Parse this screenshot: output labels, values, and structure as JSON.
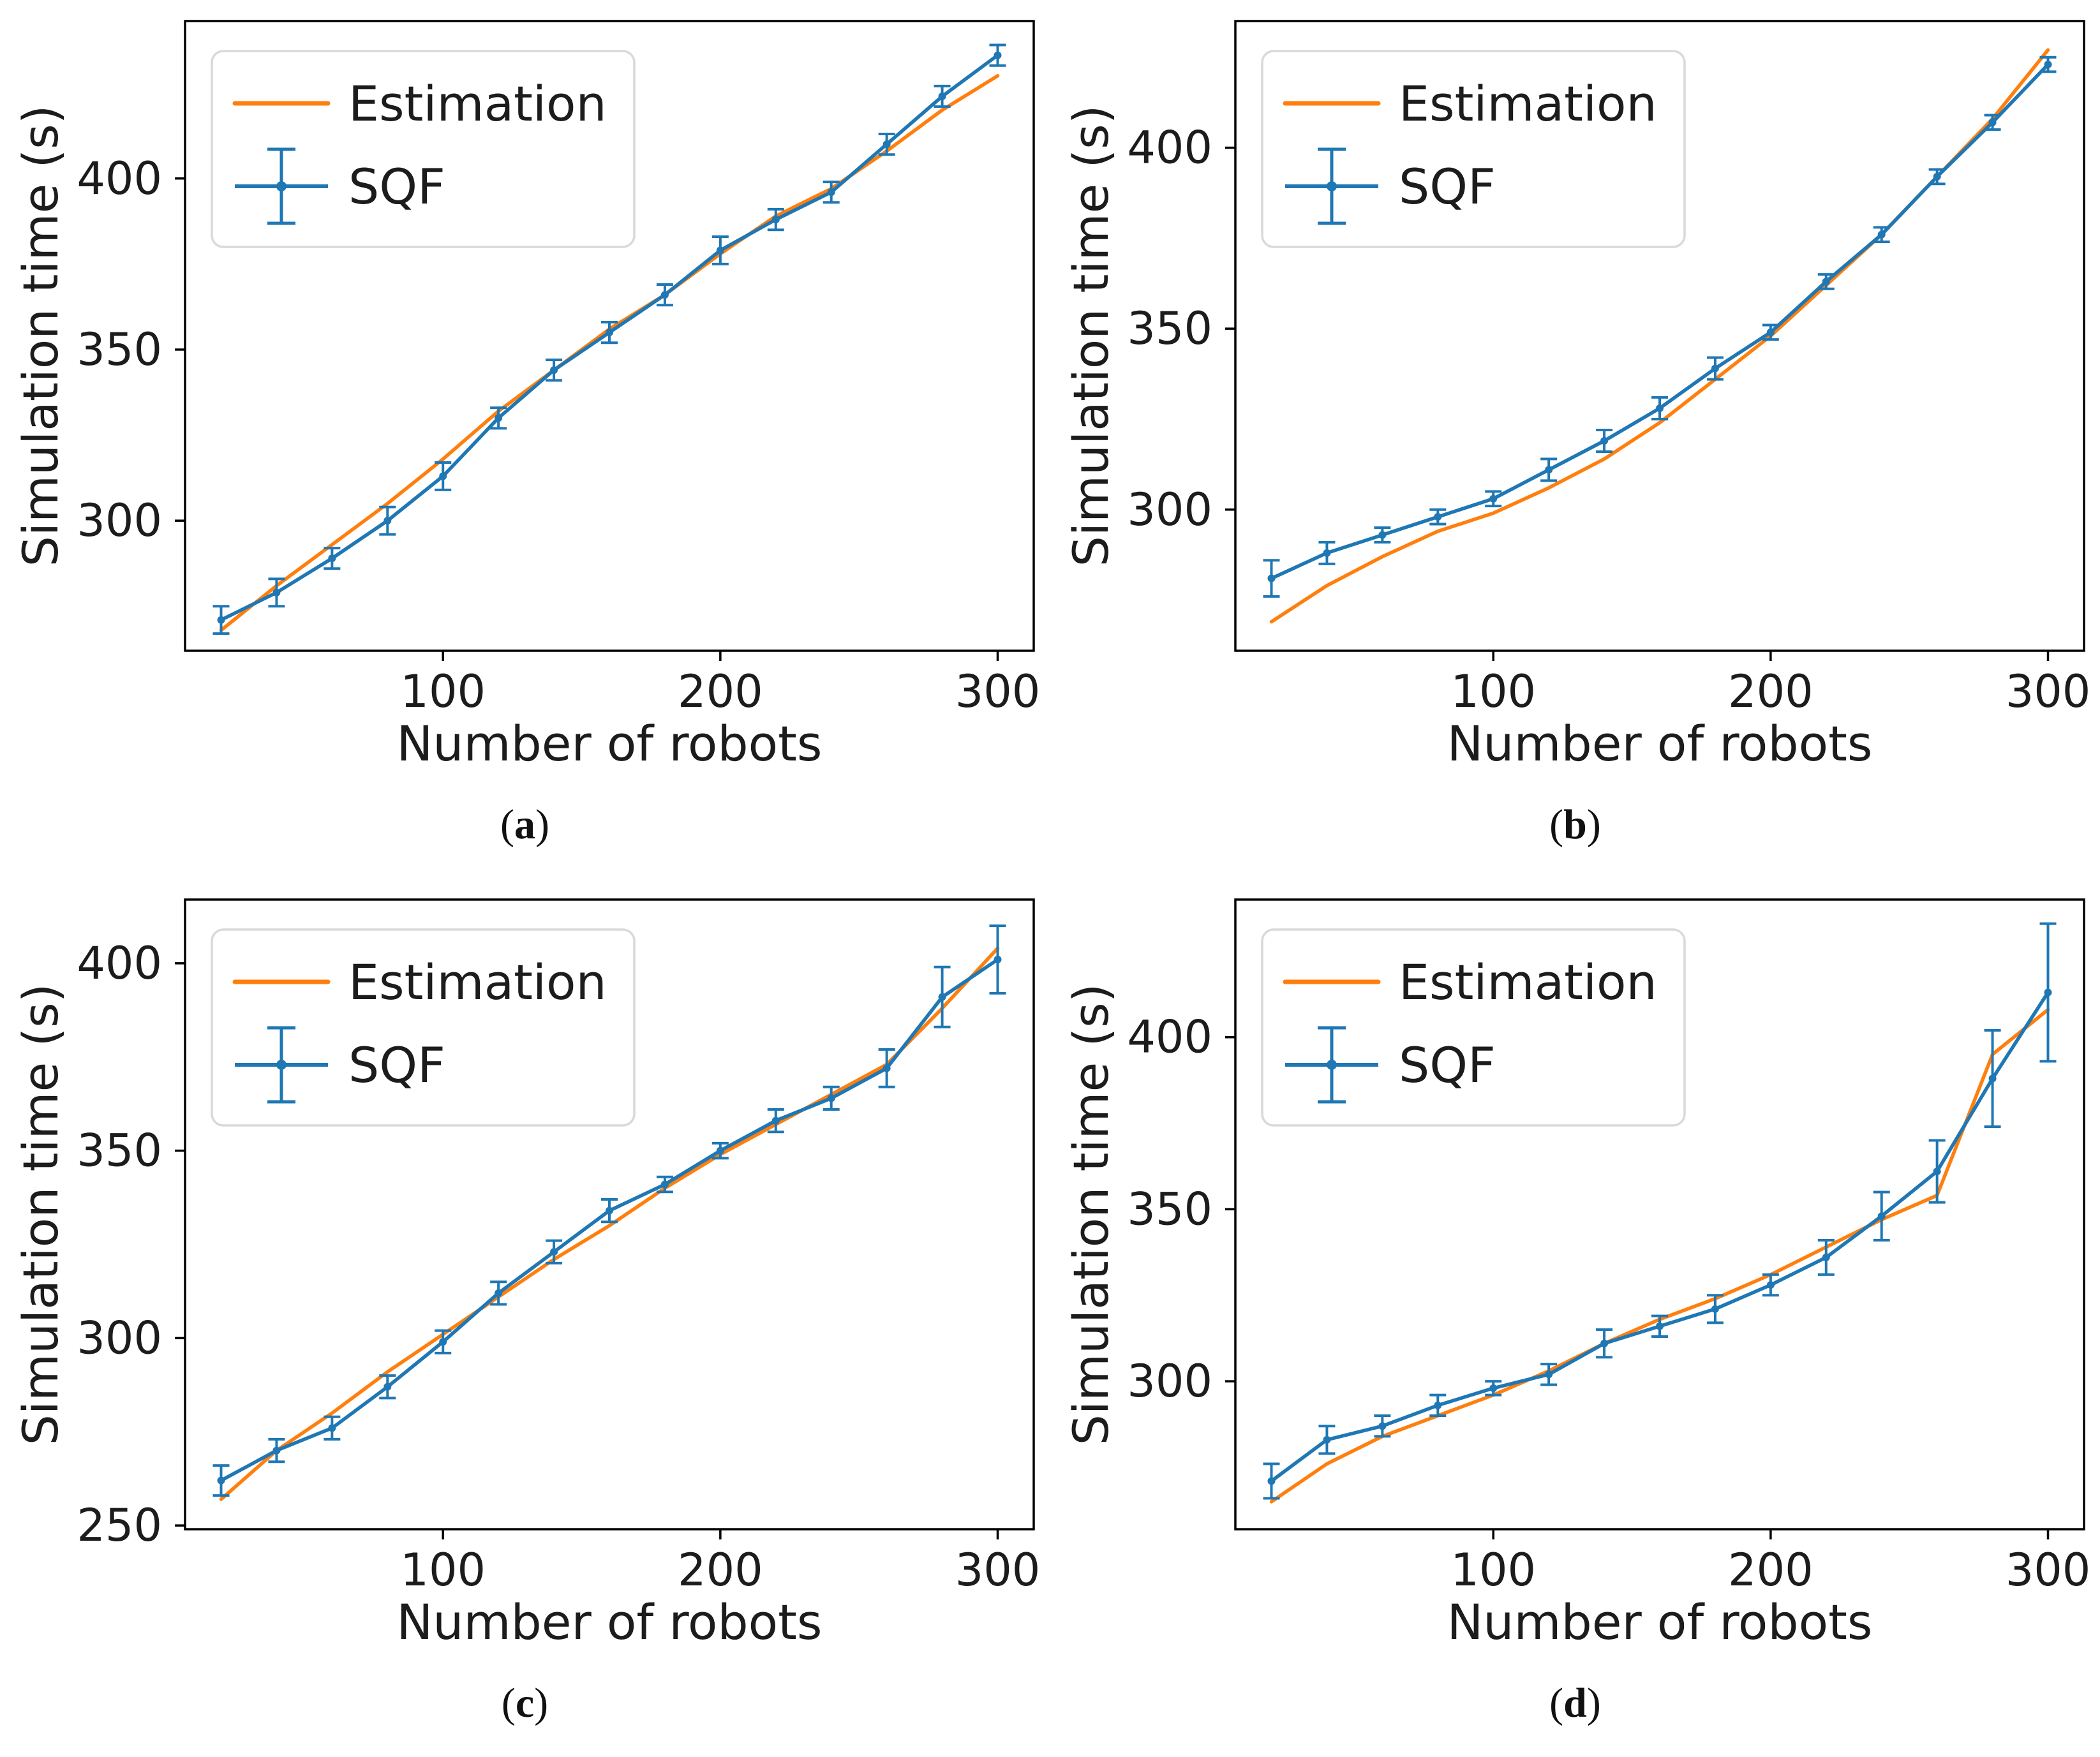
{
  "figure": {
    "xlabel": "Number of robots",
    "ylabel": "Simulation time (s)",
    "legend_labels": [
      "Estimation",
      "SQF"
    ],
    "caption_open": "(",
    "caption_close": ")",
    "colors": {
      "estimation": "#ff7f0e",
      "sqf": "#1f77b4",
      "text": "#1c1c1c",
      "spine": "#000000",
      "legend_border": "#d9d9d9"
    }
  },
  "chart_data": [
    {
      "id": "a",
      "caption_letter": "a",
      "type": "line",
      "title": "",
      "xlabel": "Number of robots",
      "ylabel": "Simulation time (s)",
      "x": [
        20,
        40,
        60,
        80,
        100,
        120,
        140,
        160,
        180,
        200,
        220,
        240,
        260,
        280,
        300
      ],
      "series": [
        {
          "name": "Estimation",
          "values": [
            268,
            281,
            293,
            305,
            318,
            332,
            344,
            356,
            366,
            378,
            389,
            397,
            408,
            420,
            430
          ]
        },
        {
          "name": "SQF",
          "values": [
            271,
            279,
            289,
            300,
            313,
            330,
            344,
            355,
            366,
            379,
            388,
            396,
            410,
            424,
            436
          ],
          "errors": [
            4,
            4,
            3,
            4,
            4,
            3,
            3,
            3,
            3,
            4,
            3,
            3,
            3,
            3,
            3
          ]
        }
      ],
      "xlim": [
        7,
        313
      ],
      "ylim": [
        262,
        446
      ],
      "xticks": [
        100,
        200,
        300
      ],
      "yticks": [
        300,
        350,
        400
      ],
      "legend_position": "upper-left",
      "grid": false
    },
    {
      "id": "b",
      "caption_letter": "b",
      "type": "line",
      "title": "",
      "xlabel": "Number of robots",
      "ylabel": "Simulation time (s)",
      "x": [
        20,
        40,
        60,
        80,
        100,
        120,
        140,
        160,
        180,
        200,
        220,
        240,
        260,
        280,
        300
      ],
      "series": [
        {
          "name": "Estimation",
          "values": [
            269,
            279,
            287,
            294,
            299,
            306,
            314,
            324,
            336,
            348,
            362,
            376,
            392,
            408,
            427
          ]
        },
        {
          "name": "SQF",
          "values": [
            281,
            288,
            293,
            298,
            303,
            311,
            319,
            328,
            339,
            349,
            363,
            376,
            392,
            407,
            423
          ],
          "errors": [
            5,
            3,
            2,
            2,
            2,
            3,
            3,
            3,
            3,
            2,
            2,
            2,
            2,
            2,
            2
          ]
        }
      ],
      "xlim": [
        7,
        313
      ],
      "ylim": [
        261,
        435
      ],
      "xticks": [
        100,
        200,
        300
      ],
      "yticks": [
        300,
        350,
        400
      ],
      "legend_position": "upper-left",
      "grid": false
    },
    {
      "id": "c",
      "caption_letter": "c",
      "type": "line",
      "title": "",
      "xlabel": "Number of robots",
      "ylabel": "Simulation time (s)",
      "x": [
        20,
        40,
        60,
        80,
        100,
        120,
        140,
        160,
        180,
        200,
        220,
        240,
        260,
        280,
        300
      ],
      "series": [
        {
          "name": "Estimation",
          "values": [
            257,
            270,
            280,
            291,
            301,
            311,
            321,
            330,
            340,
            349,
            357,
            365,
            373,
            388,
            404
          ]
        },
        {
          "name": "SQF",
          "values": [
            262,
            270,
            276,
            287,
            299,
            312,
            323,
            334,
            341,
            350,
            358,
            364,
            372,
            391,
            401
          ],
          "errors": [
            4,
            3,
            3,
            3,
            3,
            3,
            3,
            3,
            2,
            2,
            3,
            3,
            5,
            8,
            9
          ]
        }
      ],
      "xlim": [
        7,
        313
      ],
      "ylim": [
        249,
        417
      ],
      "xticks": [
        100,
        200,
        300
      ],
      "yticks": [
        250,
        300,
        350,
        400
      ],
      "legend_position": "upper-left",
      "grid": false
    },
    {
      "id": "d",
      "caption_letter": "d",
      "type": "line",
      "title": "",
      "xlabel": "Number of robots",
      "ylabel": "Simulation time (s)",
      "x": [
        20,
        40,
        60,
        80,
        100,
        120,
        140,
        160,
        180,
        200,
        220,
        240,
        260,
        280,
        300
      ],
      "series": [
        {
          "name": "Estimation",
          "values": [
            265,
            276,
            284,
            290,
            296,
            303,
            311,
            318,
            324,
            331,
            339,
            347,
            354,
            395,
            408
          ]
        },
        {
          "name": "SQF",
          "values": [
            271,
            283,
            287,
            293,
            298,
            302,
            311,
            316,
            321,
            328,
            336,
            348,
            361,
            388,
            413
          ],
          "errors": [
            5,
            4,
            3,
            3,
            2,
            3,
            4,
            3,
            4,
            3,
            5,
            7,
            9,
            14,
            20
          ]
        }
      ],
      "xlim": [
        7,
        313
      ],
      "ylim": [
        257,
        440
      ],
      "xticks": [
        100,
        200,
        300
      ],
      "yticks": [
        300,
        350,
        400
      ],
      "legend_position": "upper-left",
      "grid": false
    }
  ]
}
